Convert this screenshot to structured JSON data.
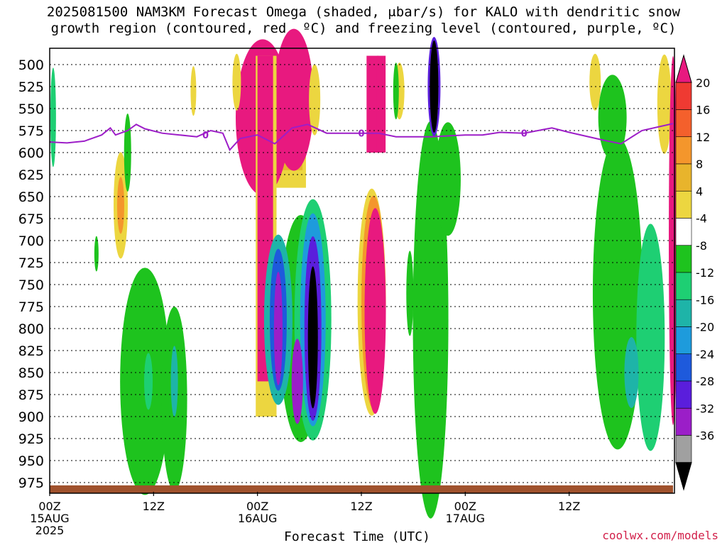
{
  "title": {
    "line1": "2025081500 NAM3KM Forecast Omega (shaded, μbar/s) for KALO with dendritic snow",
    "line2": "growth region (contoured, red, ºC) and freezing level (contoured, purple, ºC)"
  },
  "footer": {
    "credit": "coolwx.com/models",
    "xlabel": "Forecast Time (UTC)"
  },
  "colors": {
    "grid": "#000000",
    "ground": "#a0522d",
    "freezing_level": "#9d1ec8"
  },
  "chart_data": {
    "type": "heatmap",
    "title": "2025081500 NAM3KM Forecast Omega (shaded, μbar/s) for KALO with dendritic snow growth region (contoured, red, ºC) and freezing level (contoured, purple, ºC)",
    "xlabel": "Forecast Time (UTC)",
    "ylabel": "",
    "x_range_hours": [
      0,
      36
    ],
    "x_ticks": [
      {
        "hour": 0,
        "label": "00Z",
        "sub": [
          "15AUG",
          "2025"
        ]
      },
      {
        "hour": 6,
        "label": "12Z",
        "sub": []
      },
      {
        "hour": 12,
        "label": "00Z",
        "sub": [
          "16AUG"
        ]
      },
      {
        "hour": 18,
        "label": "12Z",
        "sub": []
      },
      {
        "hour": 24,
        "label": "00Z",
        "sub": [
          "17AUG"
        ]
      },
      {
        "hour": 30,
        "label": "12Z",
        "sub": []
      }
    ],
    "y_range_mb": [
      490,
      990
    ],
    "y_ticks": [
      500,
      525,
      550,
      575,
      600,
      625,
      650,
      675,
      700,
      725,
      750,
      775,
      800,
      825,
      850,
      875,
      900,
      925,
      950,
      975
    ],
    "colorbar": {
      "levels": [
        20,
        16,
        12,
        8,
        4,
        -4,
        -8,
        -12,
        -16,
        -20,
        -24,
        -28,
        -32,
        -36
      ],
      "colors": [
        "#e8197f",
        "#ef3a32",
        "#f4602c",
        "#f4962c",
        "#e8b42c",
        "#ecd640",
        "#ffffff",
        "#1ec31e",
        "#1ecf73",
        "#1eb4a8",
        "#1e9bdc",
        "#1e5adc",
        "#5a1edc",
        "#9b1ec8",
        "#a0a0a0",
        "#000000"
      ]
    },
    "freezing_level_label": "0",
    "freezing_level_mb": [
      [
        0,
        588
      ],
      [
        1,
        589
      ],
      [
        2,
        587
      ],
      [
        3,
        580
      ],
      [
        3.5,
        572
      ],
      [
        3.8,
        580
      ],
      [
        4.5,
        575
      ],
      [
        5,
        568
      ],
      [
        5.5,
        573
      ],
      [
        6.5,
        578
      ],
      [
        7.5,
        580
      ],
      [
        8.5,
        582
      ],
      [
        9.3,
        575
      ],
      [
        10,
        578
      ],
      [
        10.4,
        597
      ],
      [
        11,
        584
      ],
      [
        12,
        580
      ],
      [
        13,
        590
      ],
      [
        14,
        572
      ],
      [
        14.9,
        568
      ],
      [
        16,
        578
      ],
      [
        18,
        578
      ],
      [
        19,
        578
      ],
      [
        20,
        582
      ],
      [
        22,
        582
      ],
      [
        24,
        580
      ],
      [
        25,
        580
      ],
      [
        26,
        577
      ],
      [
        27.4,
        578
      ],
      [
        29,
        572
      ],
      [
        30,
        577
      ],
      [
        32,
        586
      ],
      [
        33,
        590
      ],
      [
        34.2,
        575
      ],
      [
        36,
        567
      ]
    ]
  }
}
